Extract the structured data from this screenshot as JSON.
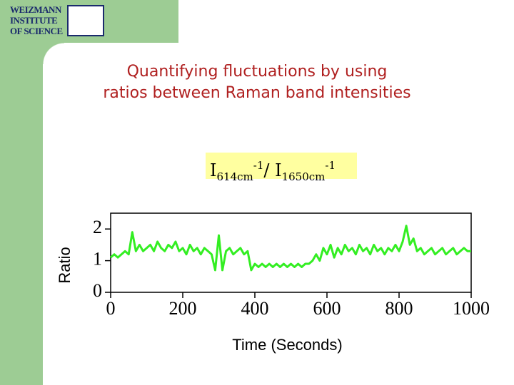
{
  "header": {
    "logo_lines": [
      "WEIZMANN",
      "INSTITUTE",
      "OF SCIENCE"
    ]
  },
  "title_lines": [
    "Quantifying fluctuations by using",
    "ratios between Raman band intensities"
  ],
  "formula": {
    "parts": [
      {
        "text": "I",
        "style": "normal"
      },
      {
        "text": "614cm",
        "style": "sub"
      },
      {
        "text": "-1",
        "style": "sup"
      },
      {
        "text": "/ I",
        "style": "normal"
      },
      {
        "text": "1650cm",
        "style": "sub"
      },
      {
        "text": "-1",
        "style": "sup"
      }
    ]
  },
  "chart_data": {
    "type": "line",
    "xlabel": "Time (Seconds)",
    "ylabel": "Ratio",
    "xlim": [
      0,
      1000
    ],
    "ylim": [
      0,
      2.5
    ],
    "xticks": [
      0,
      200,
      400,
      600,
      800,
      1000
    ],
    "yticks": [
      0,
      1,
      2
    ],
    "x": [
      0,
      10,
      20,
      30,
      40,
      50,
      60,
      70,
      80,
      90,
      100,
      110,
      120,
      130,
      140,
      150,
      160,
      170,
      180,
      190,
      200,
      210,
      220,
      230,
      240,
      250,
      260,
      270,
      280,
      290,
      300,
      310,
      320,
      330,
      340,
      350,
      360,
      370,
      380,
      390,
      400,
      410,
      420,
      430,
      440,
      450,
      460,
      470,
      480,
      490,
      500,
      510,
      520,
      530,
      540,
      550,
      560,
      570,
      580,
      590,
      600,
      610,
      620,
      630,
      640,
      650,
      660,
      670,
      680,
      690,
      700,
      710,
      720,
      730,
      740,
      750,
      760,
      770,
      780,
      790,
      800,
      810,
      820,
      830,
      840,
      850,
      860,
      870,
      880,
      890,
      900,
      910,
      920,
      930,
      940,
      950,
      960,
      970,
      980,
      990,
      1000
    ],
    "series": [
      {
        "name": "Ratio",
        "color": "#33ee22",
        "values": [
          1.1,
          1.2,
          1.1,
          1.2,
          1.3,
          1.2,
          1.9,
          1.3,
          1.5,
          1.3,
          1.4,
          1.5,
          1.3,
          1.6,
          1.4,
          1.3,
          1.5,
          1.4,
          1.6,
          1.3,
          1.4,
          1.2,
          1.5,
          1.3,
          1.4,
          1.2,
          1.4,
          1.3,
          1.2,
          0.7,
          1.8,
          0.7,
          1.3,
          1.4,
          1.2,
          1.3,
          1.4,
          1.2,
          1.3,
          0.7,
          0.9,
          0.8,
          0.9,
          0.8,
          0.9,
          0.8,
          0.9,
          0.8,
          0.9,
          0.8,
          0.9,
          0.8,
          0.9,
          0.8,
          0.9,
          0.9,
          1.0,
          1.2,
          1.0,
          1.4,
          1.2,
          1.5,
          1.1,
          1.4,
          1.2,
          1.5,
          1.3,
          1.4,
          1.2,
          1.5,
          1.3,
          1.4,
          1.2,
          1.5,
          1.3,
          1.4,
          1.2,
          1.4,
          1.3,
          1.5,
          1.3,
          1.6,
          2.1,
          1.5,
          1.7,
          1.3,
          1.4,
          1.2,
          1.3,
          1.4,
          1.2,
          1.3,
          1.4,
          1.2,
          1.3,
          1.4,
          1.2,
          1.3,
          1.4,
          1.3,
          1.3
        ]
      }
    ]
  }
}
